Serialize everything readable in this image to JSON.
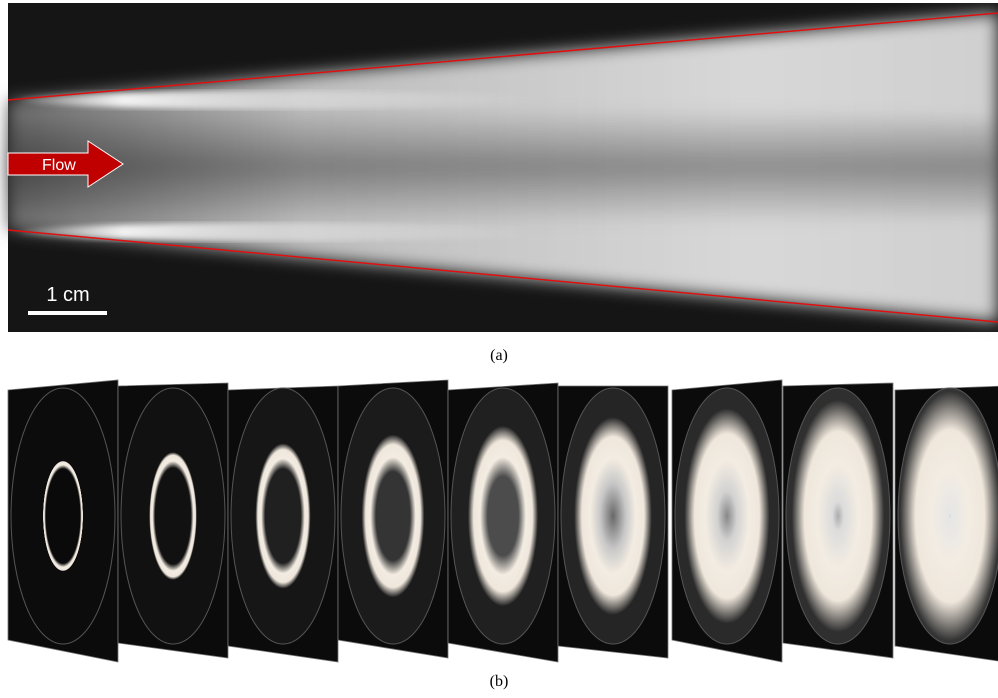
{
  "panel_a": {
    "arrow_label": "Flow",
    "scale_bar": "1 cm",
    "caption": "(a)"
  },
  "panel_b": {
    "caption": "(b)"
  }
}
